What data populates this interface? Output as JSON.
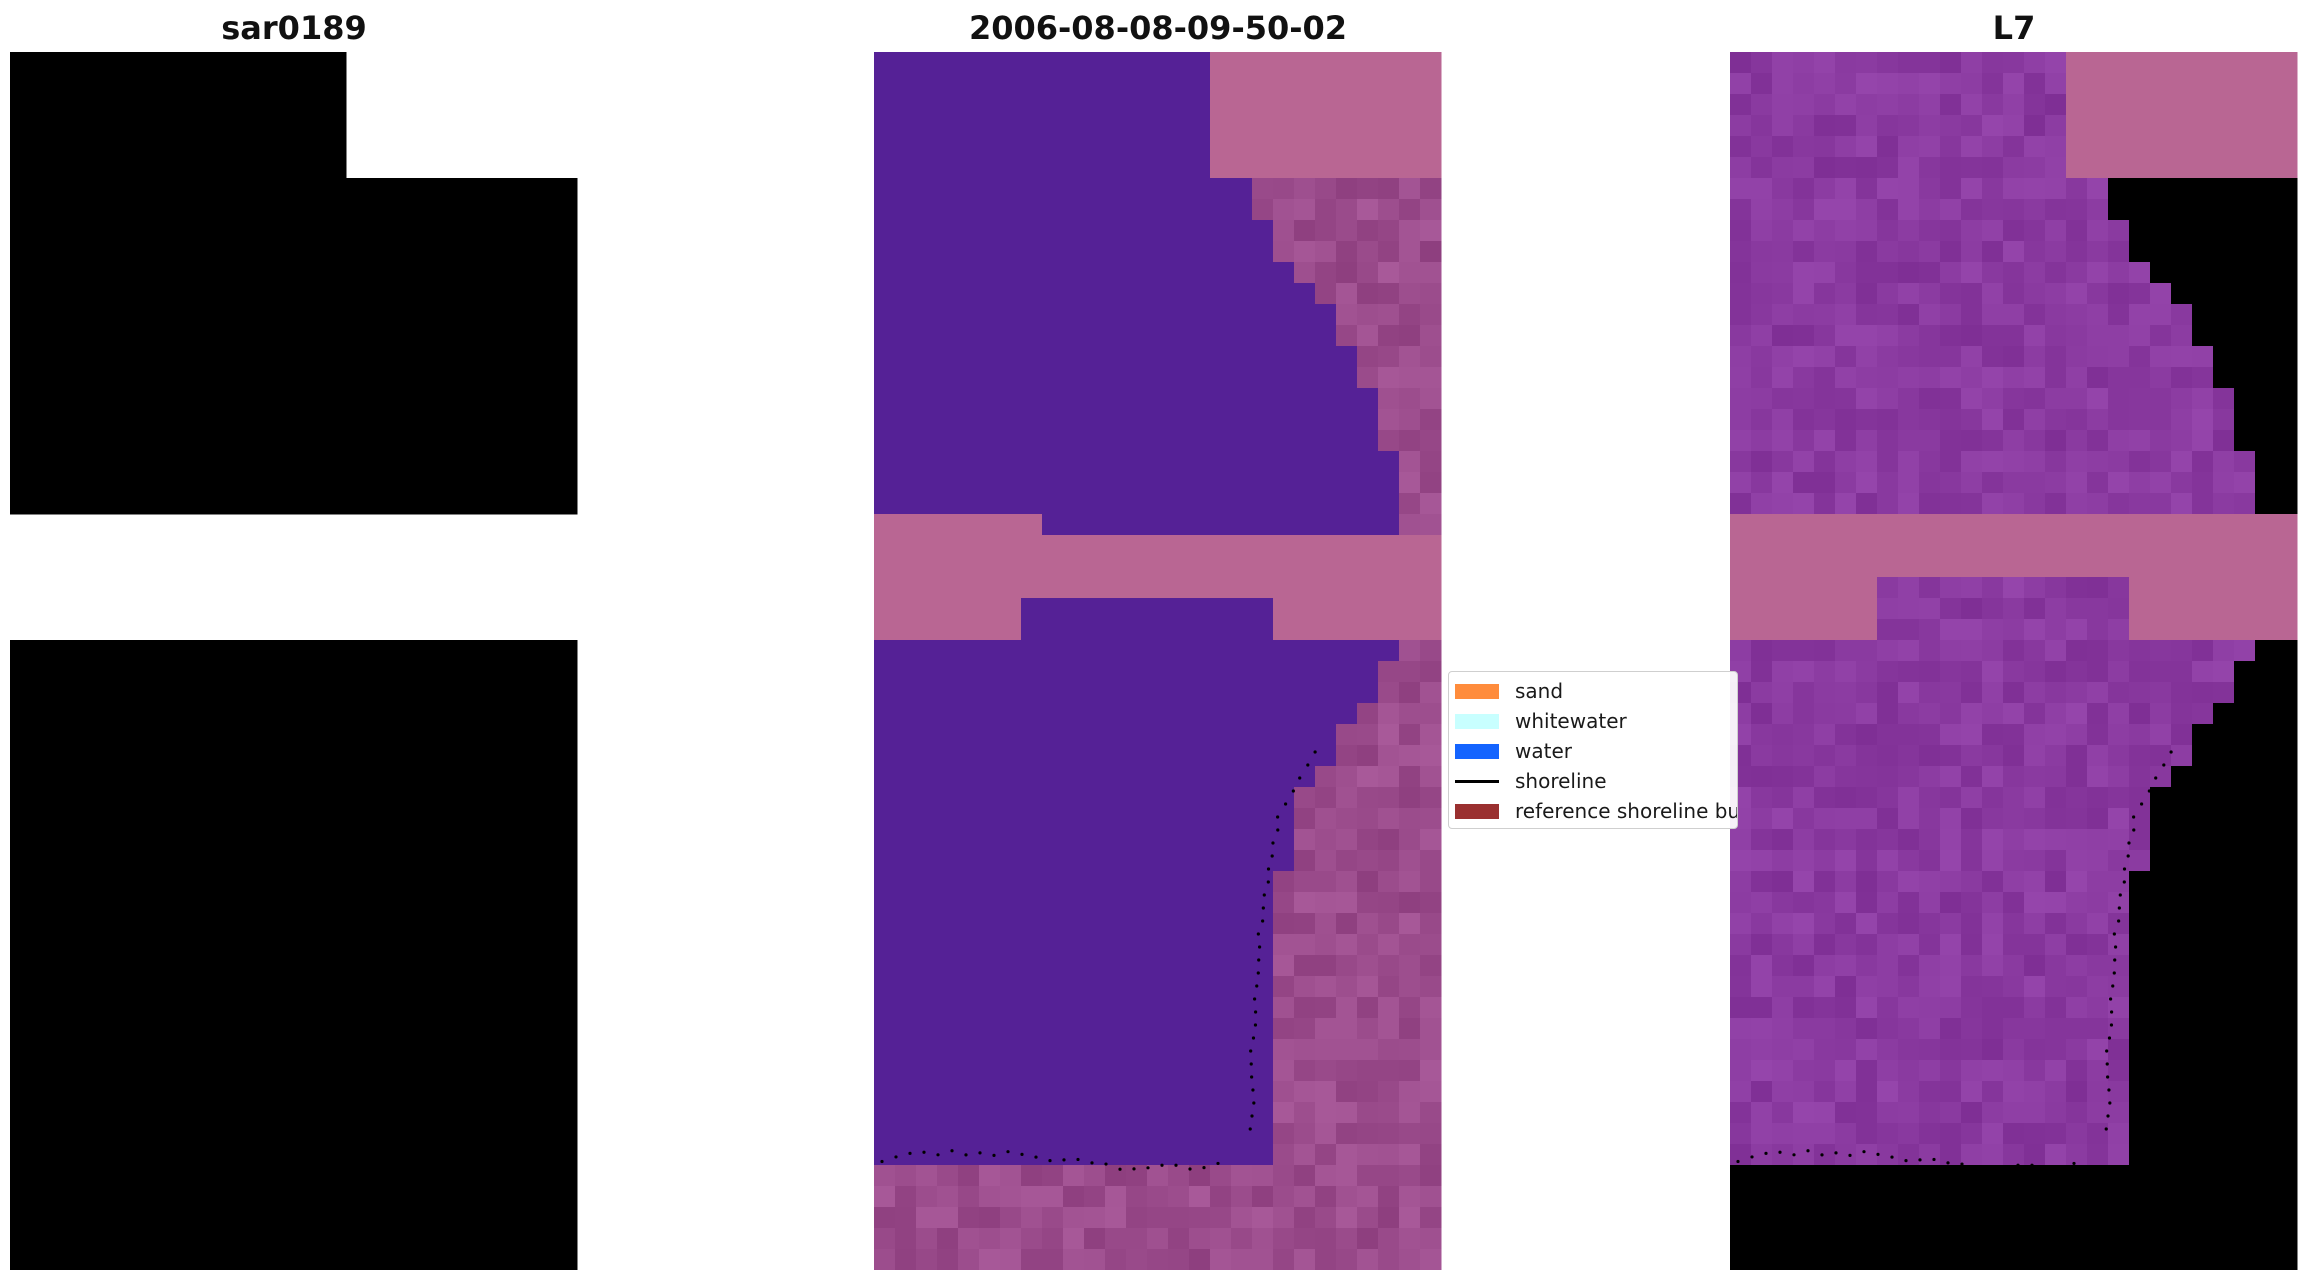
{
  "panels": [
    {
      "title": "sar0189",
      "kind": "rgb"
    },
    {
      "title": "2006-08-08-09-50-02",
      "kind": "classified"
    },
    {
      "title": "L7",
      "kind": "mndwi"
    }
  ],
  "legend": {
    "items": [
      {
        "label": "sand",
        "color": "#ff8c3c",
        "kind": "patch"
      },
      {
        "label": "whitewater",
        "color": "#c8ffff",
        "kind": "patch"
      },
      {
        "label": "water",
        "color": "#1464ff",
        "kind": "patch"
      },
      {
        "label": "shoreline",
        "color": "#000000",
        "kind": "line"
      },
      {
        "label": "reference shoreline buffer",
        "color": "#9a3030",
        "kind": "patch"
      }
    ]
  },
  "colors": {
    "rgb_water": "#4a7ccc",
    "rgb_whitewater": "#dde2f6",
    "rgb_sand": "#aab6e2",
    "class_water": "#552196",
    "class_masked": "#b96693",
    "class_land": "#9b4c8c",
    "mndwi_water": "#8a3aa0",
    "mndwi_land": "#c0103f",
    "mndwi_masked": "#b96693",
    "shoreline_dots": "#000000"
  }
}
